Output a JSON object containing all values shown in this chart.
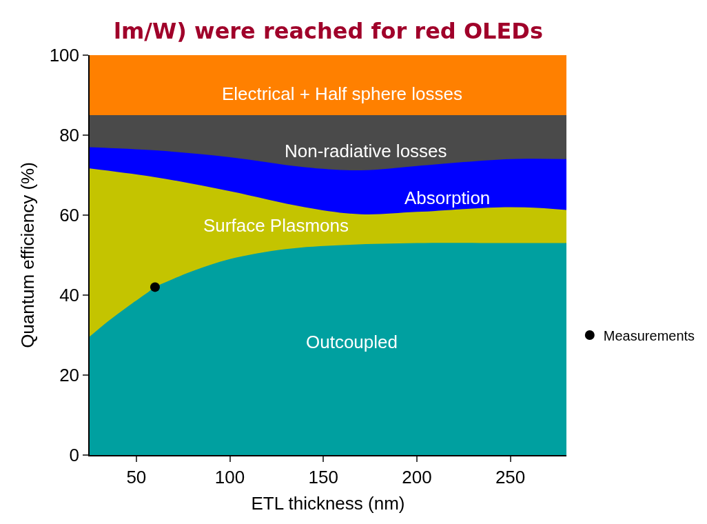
{
  "chart_data": {
    "type": "area",
    "xlabel": "ETL thickness (nm)",
    "ylabel": "Quantum efficiency (%)",
    "x": [
      25,
      60,
      100,
      140,
      170,
      200,
      250,
      280
    ],
    "xlim": [
      25,
      280
    ],
    "xticks": [
      50,
      100,
      150,
      200,
      250
    ],
    "ylim": [
      0,
      100
    ],
    "yticks": [
      0,
      20,
      40,
      60,
      80,
      100
    ],
    "series": [
      {
        "color": "#ff8000",
        "values": [
          100,
          100,
          100,
          100,
          100,
          100,
          100,
          100
        ]
      },
      {
        "color": "#4a4a4a",
        "values": [
          85,
          85,
          85,
          85,
          85,
          85,
          85,
          85
        ]
      },
      {
        "color": "#0000ff",
        "values": [
          77,
          76.2,
          74.5,
          72,
          71.2,
          72.3,
          74,
          74
        ]
      },
      {
        "color": "#c4c400",
        "values": [
          71.7,
          69.5,
          66,
          62,
          60.2,
          60.8,
          62,
          61.3
        ]
      },
      {
        "color": "#00a0a0",
        "x": [
          25,
          35,
          45,
          55,
          60,
          67,
          80,
          100,
          130,
          160,
          200,
          250,
          280
        ],
        "values": [
          29.6,
          33.5,
          37,
          40.3,
          42,
          43.5,
          46,
          49,
          51.5,
          52.5,
          53,
          53,
          53
        ]
      },
      {
        "type": "scatter",
        "name": "Measurements",
        "color": "#000000",
        "x": [
          60
        ],
        "values": [
          42
        ],
        "marker": "circle"
      }
    ],
    "legend": "right",
    "annotations": [
      "Electrical + Half sphere losses",
      "Non-radiative losses",
      "Absorption",
      "Surface Plasmons",
      "Outcoupled",
      "lm/W) were reached for red OLEDs"
    ]
  }
}
